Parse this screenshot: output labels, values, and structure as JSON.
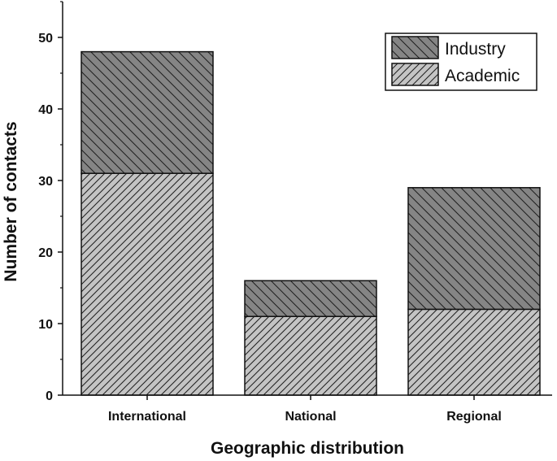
{
  "chart_data": {
    "type": "bar",
    "stacked": true,
    "categories": [
      "International",
      "National",
      "Regional"
    ],
    "series": [
      {
        "name": "Academic",
        "values": [
          31,
          11,
          12
        ],
        "color": "#c4c4c4"
      },
      {
        "name": "Industry",
        "values": [
          17,
          5,
          17
        ],
        "color": "#858585"
      }
    ],
    "xlabel": "Geographic distribution",
    "ylabel": "Number of contacts",
    "ylim": [
      0,
      55
    ],
    "yticks": [
      0,
      10,
      20,
      30,
      40,
      50
    ],
    "grid": false,
    "legend": "top-right",
    "legend_order": [
      "Industry",
      "Academic"
    ]
  }
}
